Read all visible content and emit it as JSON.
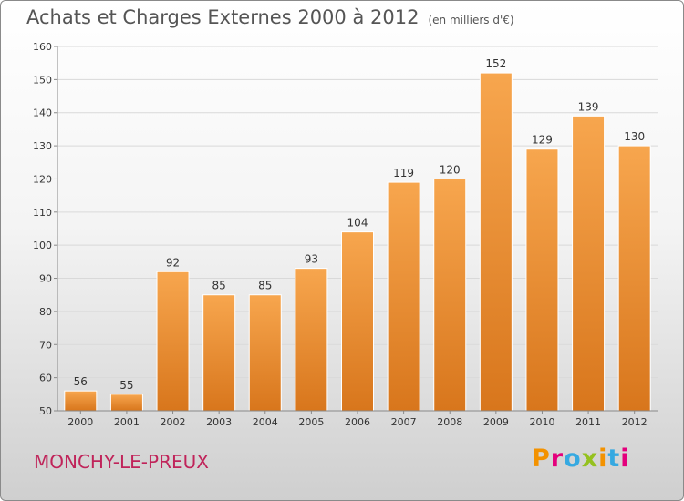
{
  "header": {
    "title": "Achats et Charges Externes 2000 à 2012",
    "unit": "(en milliers d'€)"
  },
  "footer": {
    "place": "MONCHY-LE-PREUX",
    "brand": "Proxiti",
    "brand_colors": [
      "#f39200",
      "#e4007c",
      "#36a9e1",
      "#95c11f",
      "#f39200",
      "#36a9e1",
      "#e4007c"
    ]
  },
  "colors": {
    "bar_top": "#f7a64e",
    "bar_bottom": "#d8761c",
    "grid": "#d9d9d9",
    "axis": "#888888"
  },
  "chart_data": {
    "type": "bar",
    "title": "Achats et Charges Externes 2000 à 2012",
    "subtitle": "(en milliers d'€)",
    "categories": [
      "2000",
      "2001",
      "2002",
      "2003",
      "2004",
      "2005",
      "2006",
      "2007",
      "2008",
      "2009",
      "2010",
      "2011",
      "2012"
    ],
    "values": [
      56,
      55,
      92,
      85,
      85,
      93,
      104,
      119,
      120,
      152,
      129,
      139,
      130
    ],
    "ylim": [
      50,
      160
    ],
    "yticks": [
      50,
      60,
      70,
      80,
      90,
      100,
      110,
      120,
      130,
      140,
      150,
      160
    ],
    "grid": true,
    "legend": "none"
  }
}
